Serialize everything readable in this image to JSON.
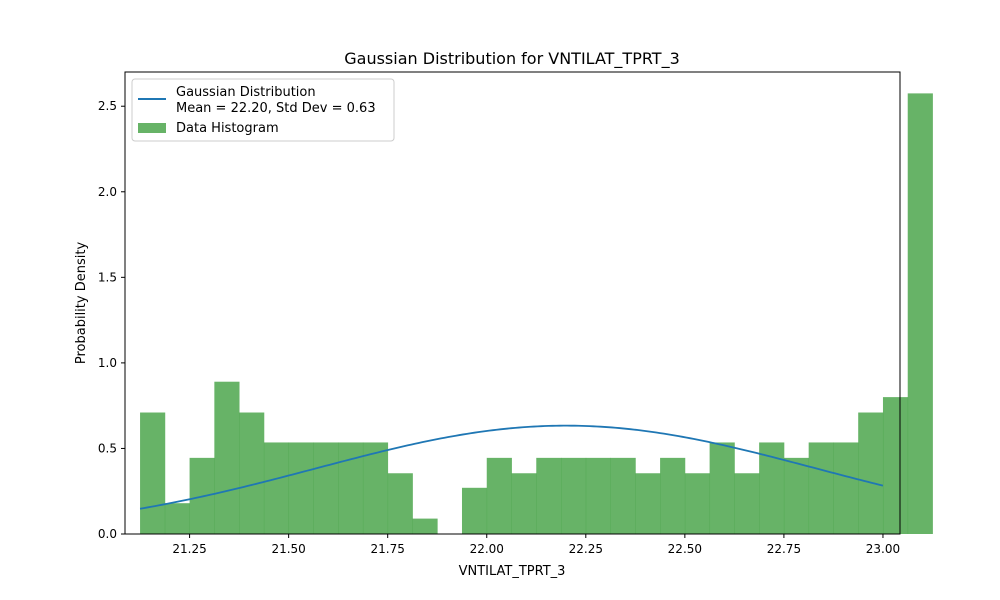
{
  "chart_data": {
    "type": "bar",
    "title": "Gaussian Distribution for VNTILAT_TPRT_3",
    "xlabel": "VNTILAT_TPRT_3",
    "ylabel": "Probability Density",
    "xlim": [
      21.087,
      23.043
    ],
    "ylim": [
      0,
      2.7
    ],
    "x_ticks": [
      "21.25",
      "21.50",
      "21.75",
      "22.00",
      "22.25",
      "22.50",
      "22.75",
      "23.00"
    ],
    "y_ticks": [
      "0.0",
      "0.5",
      "1.0",
      "1.5",
      "2.0",
      "2.5"
    ],
    "grid": false,
    "legend_position": "top-left",
    "series": [
      {
        "name": "Data Histogram",
        "kind": "histogram",
        "color": "#4ca64c",
        "bin_start": 21.125,
        "bin_width": 0.0625,
        "values": [
          0.71,
          0.18,
          0.445,
          0.89,
          0.71,
          0.535,
          0.535,
          0.535,
          0.535,
          0.535,
          0.355,
          0.09,
          0.0,
          0.27,
          0.445,
          0.355,
          0.445,
          0.445,
          0.445,
          0.445,
          0.355,
          0.445,
          0.355,
          0.535,
          0.355,
          0.535,
          0.445,
          0.535,
          0.535,
          0.71,
          0.8,
          2.575
        ]
      },
      {
        "name": "Gaussian Distribution\nMean = 22.20, Std Dev = 0.63",
        "legend_lines": [
          "Gaussian Distribution",
          "Mean = 22.20, Std Dev = 0.63"
        ],
        "kind": "line",
        "color": "#1f77b4",
        "mean": 22.2,
        "std": 0.63,
        "x_range": [
          21.125,
          23.0
        ]
      }
    ]
  }
}
